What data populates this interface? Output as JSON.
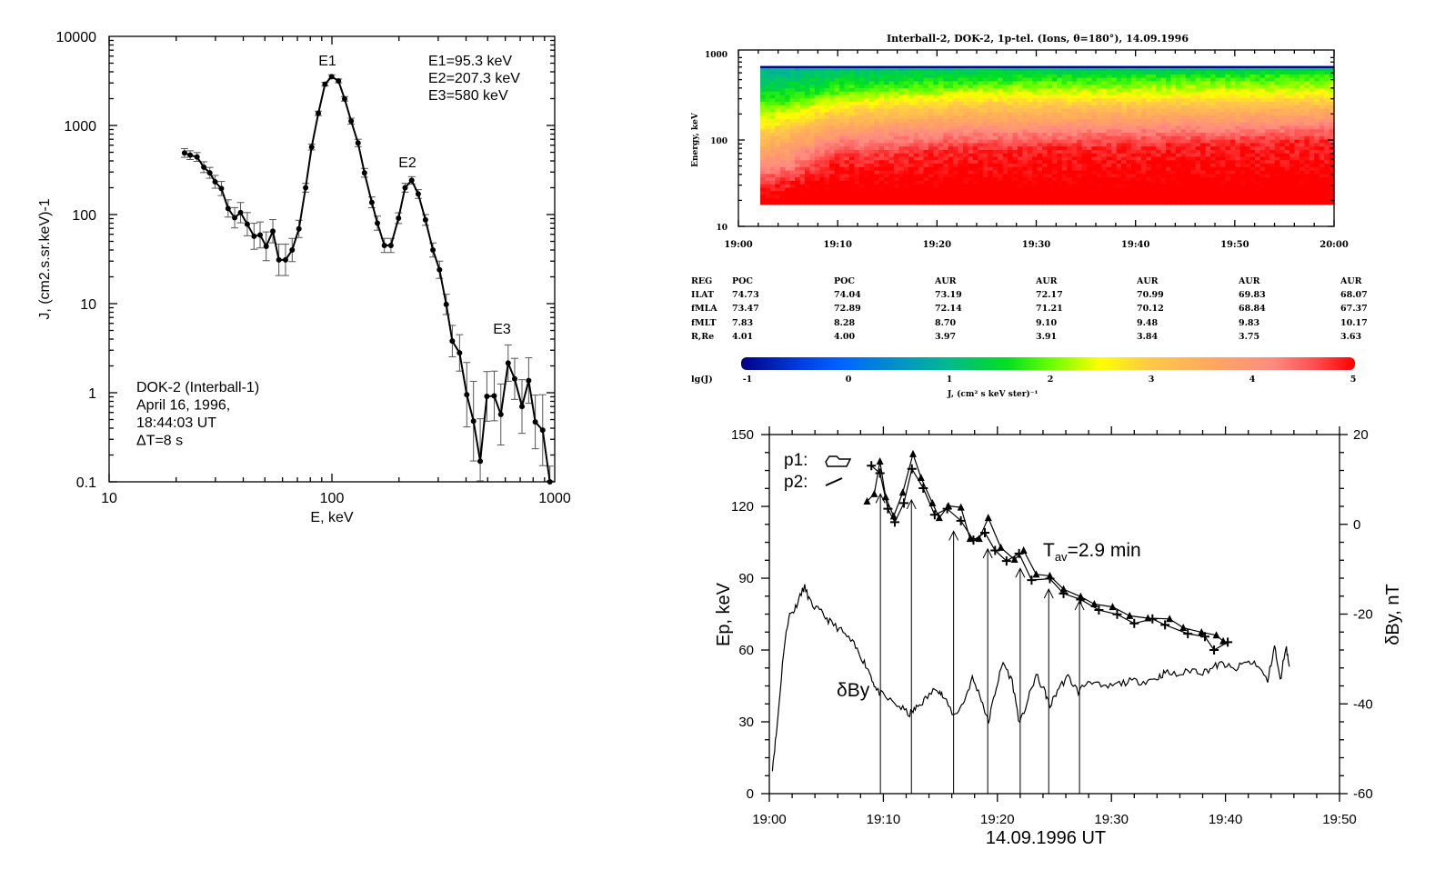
{
  "chart_data": [
    {
      "type": "line",
      "id": "spectrum",
      "title": "",
      "xlabel": "E, keV",
      "ylabel": "J, (cm2.s.sr.keV)-1",
      "xscale": "log",
      "yscale": "log",
      "xlim": [
        10,
        1000
      ],
      "ylim": [
        0.1,
        10000
      ],
      "xticks": [
        "10",
        "100",
        "1000"
      ],
      "yticks": [
        "10000",
        "1000",
        "100",
        "10",
        "1",
        "0.1"
      ],
      "peak_labels": [
        "E1",
        "E2",
        "E3"
      ],
      "peak_values": [
        "E1=95.3 keV",
        "E2=207.3 keV",
        "E3=580 keV"
      ],
      "info": [
        "DOK-2 (Interball-1)",
        "April 16, 1996,",
        "18:44:03 UT",
        "ΔT=8 s"
      ],
      "x": [
        21.8,
        23.1,
        24.8,
        26.6,
        28.3,
        29.9,
        31.9,
        34.2,
        36.6,
        38.9,
        41.7,
        44.7,
        47.6,
        50.7,
        54.3,
        57.8,
        61.9,
        66.3,
        71.1,
        76.2,
        81.1,
        86.9,
        93.1,
        99.7,
        107,
        114,
        122,
        131,
        140,
        151,
        160,
        172,
        184,
        199,
        213,
        228,
        244,
        263,
        284,
        304,
        326,
        347,
        374,
        403,
        432,
        463,
        496,
        535,
        573,
        618,
        661,
        713,
        764,
        818,
        883,
        951
      ],
      "y": [
        491,
        464,
        443,
        340,
        294,
        233,
        196,
        117,
        92,
        105,
        78,
        57,
        59,
        44,
        65,
        31,
        31,
        40,
        69,
        200,
        573,
        1368,
        2903,
        3530,
        3162,
        1990,
        1117,
        636,
        294,
        137,
        80,
        45,
        45,
        91,
        200,
        242,
        170,
        87,
        40,
        24,
        9.8,
        3.8,
        2.8,
        0.95,
        0.48,
        0.17,
        0.91,
        0.92,
        0.57,
        2.15,
        1.43,
        0.7,
        1.37,
        0.47,
        0.38,
        0.1
      ],
      "error_factor": [
        1.12,
        1.12,
        1.12,
        1.15,
        1.15,
        1.18,
        1.2,
        1.25,
        1.3,
        1.3,
        1.35,
        1.4,
        1.4,
        1.45,
        1.35,
        1.5,
        1.5,
        1.35,
        1.25,
        1.12,
        1.08,
        1.06,
        1.05,
        1.05,
        1.05,
        1.06,
        1.08,
        1.1,
        1.12,
        1.15,
        1.2,
        1.2,
        1.2,
        1.15,
        1.12,
        1.1,
        1.12,
        1.15,
        1.2,
        1.25,
        1.3,
        1.5,
        1.6,
        2.3,
        2.8,
        3.0,
        1.9,
        1.9,
        2.2,
        1.6,
        1.7,
        2.0,
        1.8,
        2.0,
        2.5,
        1.5
      ]
    },
    {
      "type": "heatmap",
      "id": "spectrogram",
      "title": "Interball-2, DOK-2, 1p-tel. (Ions, θ=180°),  14.09.1996",
      "ylabel": "Energy, keV",
      "yscale": "log",
      "ylim": [
        10,
        1000
      ],
      "yticks": [
        "1000",
        "100",
        "10"
      ],
      "xticks": [
        "19:00",
        "19:10",
        "19:20",
        "19:30",
        "19:40",
        "19:50",
        "20:00"
      ],
      "xlim_minutes_after_1900": [
        0,
        60
      ],
      "data_time_range_minutes": [
        2.2,
        60
      ],
      "data_energy_range_keV": [
        18,
        700
      ],
      "boundary_times_minutes": [
        2,
        5,
        8,
        10,
        15,
        20,
        25,
        30,
        35,
        40,
        50,
        60
      ],
      "level_boundaries": [
        {
          "lgJ": 4.8,
          "energy_keV": [
            30,
            32,
            45,
            60,
            65,
            75,
            80,
            80,
            85,
            85,
            95,
            100
          ]
        },
        {
          "lgJ": 4.2,
          "energy_keV": [
            45,
            55,
            80,
            100,
            110,
            120,
            125,
            125,
            130,
            135,
            140,
            150
          ]
        },
        {
          "lgJ": 3.5,
          "energy_keV": [
            80,
            100,
            130,
            150,
            165,
            180,
            190,
            190,
            200,
            200,
            210,
            220
          ]
        },
        {
          "lgJ": 2.6,
          "energy_keV": [
            150,
            180,
            230,
            250,
            280,
            300,
            320,
            320,
            320,
            320,
            330,
            340
          ]
        },
        {
          "lgJ": 1.8,
          "energy_keV": [
            280,
            300,
            350,
            400,
            420,
            450,
            480,
            500,
            500,
            520,
            540,
            560
          ]
        },
        {
          "lgJ": 1.2,
          "energy_keV": [
            500,
            520,
            600,
            650,
            650,
            680,
            680,
            680,
            680,
            680,
            680,
            680
          ]
        }
      ],
      "colorbar": {
        "label": "lg(J)",
        "units": "J, (cm² s keV ster)⁻¹",
        "ticks": [
          "-1",
          "0",
          "1",
          "2",
          "3",
          "4",
          "5"
        ],
        "range": [
          -1,
          5
        ],
        "stops": [
          {
            "v": -1,
            "c": "#00008b"
          },
          {
            "v": -0.4,
            "c": "#0040e0"
          },
          {
            "v": 0,
            "c": "#0066ff"
          },
          {
            "v": 0.6,
            "c": "#0098c0"
          },
          {
            "v": 1,
            "c": "#00b890"
          },
          {
            "v": 1.6,
            "c": "#00e020"
          },
          {
            "v": 2.0,
            "c": "#60ff00"
          },
          {
            "v": 2.5,
            "c": "#ffff00"
          },
          {
            "v": 3.0,
            "c": "#ffc848"
          },
          {
            "v": 3.6,
            "c": "#ffa860"
          },
          {
            "v": 4.2,
            "c": "#ff8a80"
          },
          {
            "v": 4.6,
            "c": "#ff5050"
          },
          {
            "v": 5,
            "c": "#ff0000"
          }
        ]
      },
      "orbit_table": {
        "row_labels": [
          "REG",
          "ILAT",
          "fMLA",
          "fMLT",
          "R,Re"
        ],
        "columns": [
          [
            "POC",
            "74.73",
            "73.47",
            "7.83",
            "4.01"
          ],
          [
            "POC",
            "74.04",
            "72.89",
            "8.28",
            "4.00"
          ],
          [
            "AUR",
            "73.19",
            "72.14",
            "8.70",
            "3.97"
          ],
          [
            "AUR",
            "72.17",
            "71.21",
            "9.10",
            "3.91"
          ],
          [
            "AUR",
            "70.99",
            "70.12",
            "9.48",
            "3.84"
          ],
          [
            "AUR",
            "69.83",
            "68.84",
            "9.83",
            "3.75"
          ],
          [
            "AUR",
            "68.07",
            "67.37",
            "10.17",
            "3.63"
          ]
        ]
      }
    },
    {
      "type": "line",
      "id": "energy_dispersion",
      "xlabel": "14.09.1996 UT",
      "ylabel_left": "Ep, keV",
      "ylabel_right": "δBy, nT",
      "xticks": [
        "19:00",
        "19:10",
        "19:20",
        "19:30",
        "19:40",
        "19:50"
      ],
      "xlim_minutes_after_1900": [
        0,
        50
      ],
      "ylim_left": [
        0,
        150
      ],
      "yticks_left": [
        "0",
        "30",
        "60",
        "90",
        "120",
        "150"
      ],
      "ylim_right": [
        -60,
        20
      ],
      "yticks_right": [
        "-60",
        "-40",
        "-20",
        "0",
        "20"
      ],
      "legend": [
        "p1:",
        "p2:"
      ],
      "annotation_tav": "T",
      "annotation_tav_sub": "av",
      "annotation_tav_value": "=2.9 min",
      "dby_label": "δBy",
      "series": [
        {
          "name": "p1",
          "marker": "triangle",
          "axis": "left",
          "x": [
            8.57,
            9.2,
            9.7,
            10.2,
            10.9,
            11.7,
            12.6,
            13.3,
            14.3,
            14.9,
            15.7,
            16.8,
            17.6,
            18.4,
            19.2,
            20.3,
            21.5,
            22.3,
            23.4,
            24.6,
            25.8,
            27.3,
            28.5,
            30.1,
            31.6,
            33.2,
            35.1,
            36.3,
            37.9,
            39.2,
            39.8
          ],
          "y": [
            122.1,
            125.2,
            138.8,
            123.9,
            115.9,
            125.8,
            141.9,
            132,
            121.4,
            115.2,
            120.2,
            119.6,
            106.5,
            106.5,
            115.2,
            102.8,
            97.8,
            101.6,
            91.6,
            91,
            85.4,
            82.3,
            79.2,
            78,
            74.3,
            73.3,
            73,
            69.3,
            67.4,
            66.2,
            63.7
          ]
        },
        {
          "name": "p2",
          "marker": "plus",
          "axis": "left",
          "x": [
            8.95,
            9.7,
            10.4,
            11.0,
            11.8,
            12.5,
            13.5,
            14.5,
            15.6,
            16.8,
            17.9,
            18.9,
            19.8,
            20.8,
            21.9,
            23.0,
            24.6,
            25.8,
            27.3,
            28.9,
            30.5,
            32.0,
            33.6,
            34.7,
            36.7,
            38.2,
            39.0,
            40.2
          ],
          "y": [
            137,
            133.9,
            119,
            113.4,
            121.4,
            135.7,
            127.6,
            116.5,
            119,
            114,
            105.9,
            109,
            101.6,
            97.2,
            100.3,
            89.2,
            89.8,
            83.6,
            81.1,
            76.7,
            74.9,
            71.1,
            73,
            70.5,
            66.8,
            65.6,
            60,
            63.3
          ]
        },
        {
          "name": "δBy",
          "marker": "none",
          "axis": "right",
          "x": [
            0.27,
            0.66,
            1.25,
            1.71,
            2.2,
            2.8,
            3.1,
            3.66,
            4.55,
            5.3,
            6.3,
            7.3,
            8.1,
            8.8,
            9.4,
            10.2,
            11.4,
            12.3,
            12.9,
            13.7,
            14.7,
            15.2,
            16.2,
            17.0,
            17.8,
            18.6,
            19.2,
            19.9,
            20.5,
            21.3,
            21.96,
            22.7,
            23.4,
            24.2,
            24.6,
            25.4,
            26.2,
            27.1,
            28.1,
            29.3,
            30.5,
            31.6,
            32.8,
            34.0,
            34.7,
            35.9,
            37.1,
            38.0,
            39.0,
            39.8,
            40.8,
            41.7,
            42.7,
            43.7,
            44.3,
            44.8,
            45.3,
            45.6
          ],
          "y": [
            -54.2,
            -45.6,
            -28.3,
            -20.4,
            -19.1,
            -15.1,
            -14.1,
            -17.7,
            -19.7,
            -21.7,
            -23.7,
            -26.4,
            -29.7,
            -33,
            -37,
            -38.6,
            -40.6,
            -42.3,
            -40.9,
            -38.9,
            -36.3,
            -38.3,
            -42.6,
            -39.9,
            -34.3,
            -38.9,
            -44.2,
            -36.3,
            -30.7,
            -35,
            -44.6,
            -38.9,
            -33.6,
            -37.6,
            -40.6,
            -36.3,
            -34,
            -37.3,
            -34.6,
            -36.6,
            -35.6,
            -35,
            -35,
            -34.3,
            -33,
            -33.6,
            -32.3,
            -33,
            -31.7,
            -31,
            -32.6,
            -30.7,
            -31,
            -35,
            -27,
            -35,
            -27,
            -31.7
          ]
        }
      ],
      "arrows": {
        "x": [
          9.74,
          12.46,
          16.16,
          19.15,
          22.0,
          24.5,
          27.2
        ],
        "tip_keV": [
          125.2,
          122.7,
          109.6,
          102.2,
          94.1,
          85.4,
          80.5
        ]
      }
    }
  ]
}
